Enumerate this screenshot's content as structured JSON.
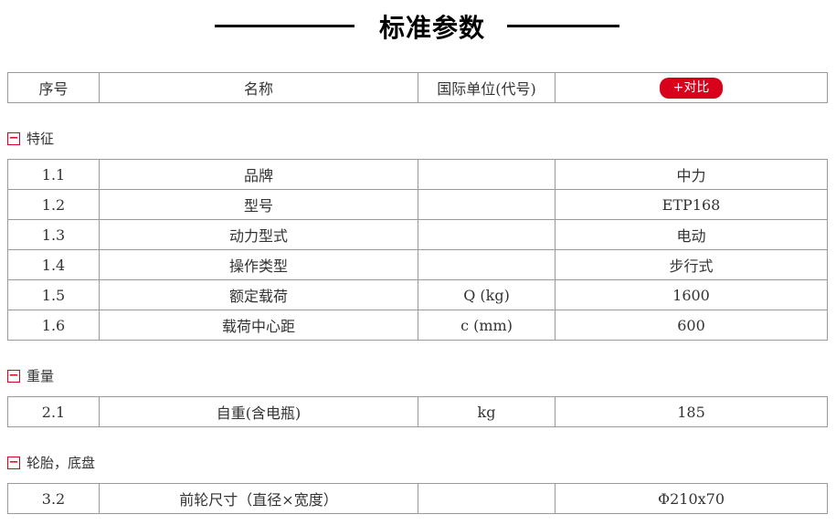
{
  "title": "标准参数",
  "header": {
    "col_serial": "序号",
    "col_name": "名称",
    "col_unit": "国际单位(代号)",
    "compare_button": "+对比"
  },
  "sections": [
    {
      "label": "特征",
      "rows": [
        {
          "no": "1.1",
          "name": "品牌",
          "unit": "",
          "value": "中力"
        },
        {
          "no": "1.2",
          "name": "型号",
          "unit": "",
          "value": "ETP168"
        },
        {
          "no": "1.3",
          "name": "动力型式",
          "unit": "",
          "value": "电动"
        },
        {
          "no": "1.4",
          "name": "操作类型",
          "unit": "",
          "value": "步行式"
        },
        {
          "no": "1.5",
          "name": "额定载荷",
          "unit": "Q (kg)",
          "value": "1600"
        },
        {
          "no": "1.6",
          "name": "载荷中心距",
          "unit": "c (mm)",
          "value": "600"
        }
      ]
    },
    {
      "label": "重量",
      "rows": [
        {
          "no": "2.1",
          "name": "自重(含电瓶)",
          "unit": "kg",
          "value": "185"
        }
      ]
    },
    {
      "label": "轮胎，底盘",
      "rows": [
        {
          "no": "3.2",
          "name": "前轮尺寸（直径×宽度）",
          "unit": "",
          "value": "Φ210x70"
        }
      ]
    }
  ],
  "icons": {
    "collapse_glyph": "−"
  },
  "colors": {
    "accent_red": "#d9001b",
    "border_gray": "#999999",
    "text": "#333333",
    "title_black": "#000000"
  }
}
